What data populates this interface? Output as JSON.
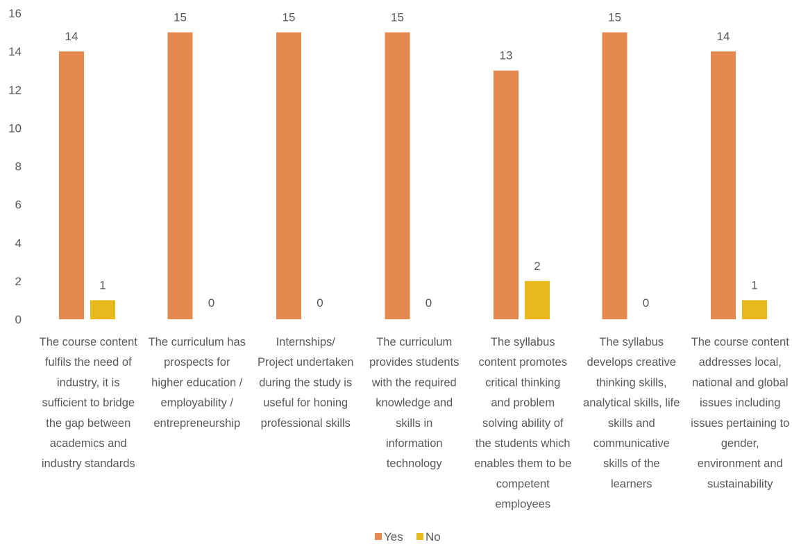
{
  "chart_data": {
    "type": "bar",
    "title": "",
    "xlabel": "",
    "ylabel": "",
    "ylim": [
      0,
      16
    ],
    "yticks": [
      0,
      2,
      4,
      6,
      8,
      10,
      12,
      14,
      16
    ],
    "grid": false,
    "legend_position": "bottom",
    "categories": [
      [
        "The course content",
        "fulfils the need of",
        "industry, it is",
        "sufficient to bridge",
        "the gap between",
        "academics and",
        "industry standards"
      ],
      [
        "The curriculum has",
        "prospects for",
        "higher education /",
        "employability /",
        "entrepreneurship"
      ],
      [
        "Internships/",
        "Project undertaken",
        "during the study is",
        "useful for honing",
        "professional skills"
      ],
      [
        "The curriculum",
        "provides students",
        "with the required",
        "knowledge and",
        "skills in",
        "information",
        "technology"
      ],
      [
        "The syllabus",
        "content promotes",
        "critical thinking",
        "and problem",
        "solving ability of",
        "the students which",
        "enables them to be",
        "competent",
        "employees"
      ],
      [
        "The syllabus",
        "develops creative",
        "thinking skills,",
        "analytical skills, life",
        "skills and",
        "communicative",
        "skills of the",
        "learners"
      ],
      [
        "The course content",
        "addresses local,",
        "national and global",
        "issues including",
        "issues pertaining to",
        "gender,",
        "environment and",
        "sustainability"
      ]
    ],
    "series": [
      {
        "name": "Yes",
        "color": "#E58A4E",
        "values": [
          14,
          15,
          15,
          15,
          13,
          15,
          14
        ]
      },
      {
        "name": "No",
        "color": "#E8B91C",
        "values": [
          1,
          0,
          0,
          0,
          2,
          0,
          1
        ]
      }
    ]
  }
}
